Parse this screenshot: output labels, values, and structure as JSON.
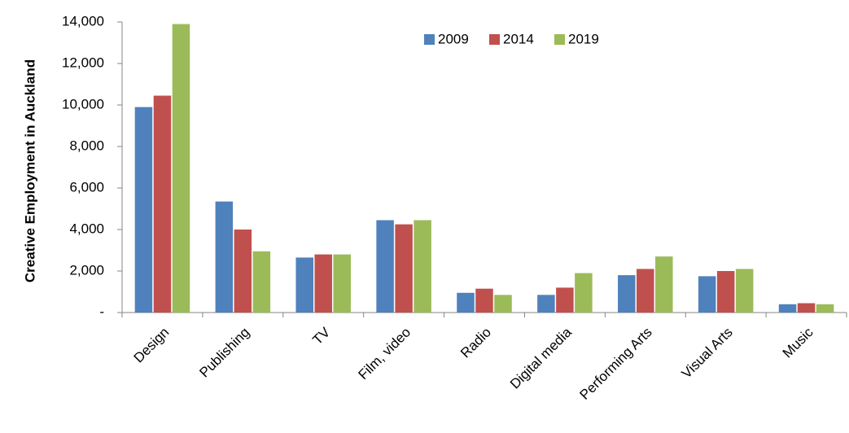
{
  "chart_data": {
    "type": "bar",
    "y_label": "Creative Employment in Auckland",
    "categories": [
      "Design",
      "Publishing",
      "TV",
      "Film, video",
      "Radio",
      "Digital media",
      "Performing Arts",
      "Visual Arts",
      "Music"
    ],
    "series": [
      {
        "name": "2009",
        "color": "#4f81bd",
        "values": [
          9900,
          5350,
          2650,
          4450,
          950,
          850,
          1800,
          1750,
          400
        ]
      },
      {
        "name": "2014",
        "color": "#c0504d",
        "values": [
          10450,
          4000,
          2800,
          4250,
          1150,
          1200,
          2100,
          2000,
          450
        ]
      },
      {
        "name": "2019",
        "color": "#9bbb59",
        "values": [
          13900,
          2950,
          2800,
          4450,
          850,
          1900,
          2700,
          2100,
          400
        ]
      }
    ],
    "ylim": [
      0,
      14000
    ],
    "yticks": [
      {
        "value": 0,
        "label": "-"
      },
      {
        "value": 2000,
        "label": "2,000"
      },
      {
        "value": 4000,
        "label": "4,000"
      },
      {
        "value": 6000,
        "label": "6,000"
      },
      {
        "value": 8000,
        "label": "8,000"
      },
      {
        "value": 10000,
        "label": "10,000"
      },
      {
        "value": 12000,
        "label": "12,000"
      },
      {
        "value": 14000,
        "label": "14,000"
      }
    ],
    "legend": "top"
  }
}
